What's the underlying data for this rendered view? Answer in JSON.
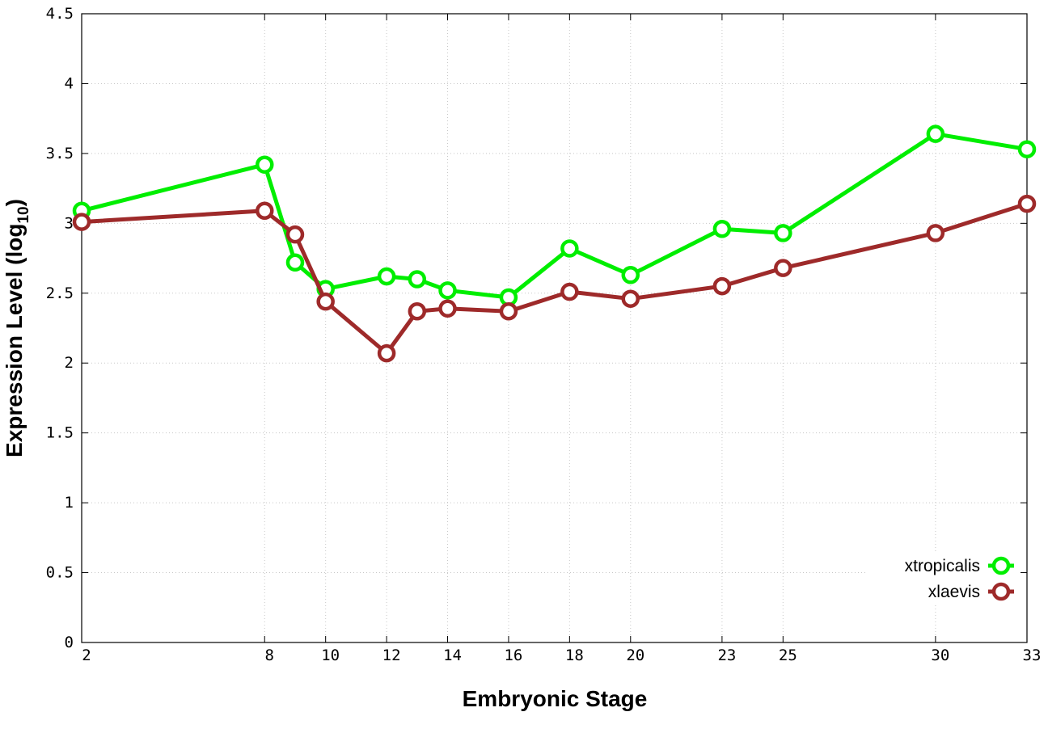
{
  "chart_data": {
    "type": "line",
    "xlabel": "Embryonic Stage",
    "ylabel_main": "Expression Level (log",
    "ylabel_sub": "10",
    "ylabel_close": ")",
    "xlim": [
      2,
      33
    ],
    "ylim": [
      0,
      4.5
    ],
    "xticks": [
      2,
      8,
      10,
      12,
      14,
      16,
      18,
      20,
      23,
      25,
      30,
      33
    ],
    "yticks": [
      {
        "value": 0,
        "label": "0"
      },
      {
        "value": 0.5,
        "label": "0.5"
      },
      {
        "value": 1,
        "label": "1"
      },
      {
        "value": 1.5,
        "label": "1.5"
      },
      {
        "value": 2,
        "label": "2"
      },
      {
        "value": 2.5,
        "label": "2.5"
      },
      {
        "value": 3,
        "label": "3"
      },
      {
        "value": 3.5,
        "label": "3.5"
      },
      {
        "value": 4,
        "label": "4"
      },
      {
        "value": 4.5,
        "label": "4.5"
      }
    ],
    "grid": true,
    "legend_position": "bottom-right",
    "x": [
      2,
      8,
      9,
      10,
      12,
      13,
      14,
      16,
      18,
      20,
      23,
      25,
      30,
      33
    ],
    "series": [
      {
        "name": "xtropicalis",
        "color": "#00ee00",
        "values": [
          3.09,
          3.42,
          2.72,
          2.53,
          2.62,
          2.6,
          2.52,
          2.47,
          2.82,
          2.63,
          2.96,
          2.93,
          3.64,
          3.53
        ]
      },
      {
        "name": "xlaevis",
        "color": "#9e2a2a",
        "values": [
          3.01,
          3.09,
          2.92,
          2.44,
          2.07,
          2.37,
          2.39,
          2.37,
          2.51,
          2.46,
          2.55,
          2.68,
          2.93,
          3.14
        ]
      }
    ]
  }
}
